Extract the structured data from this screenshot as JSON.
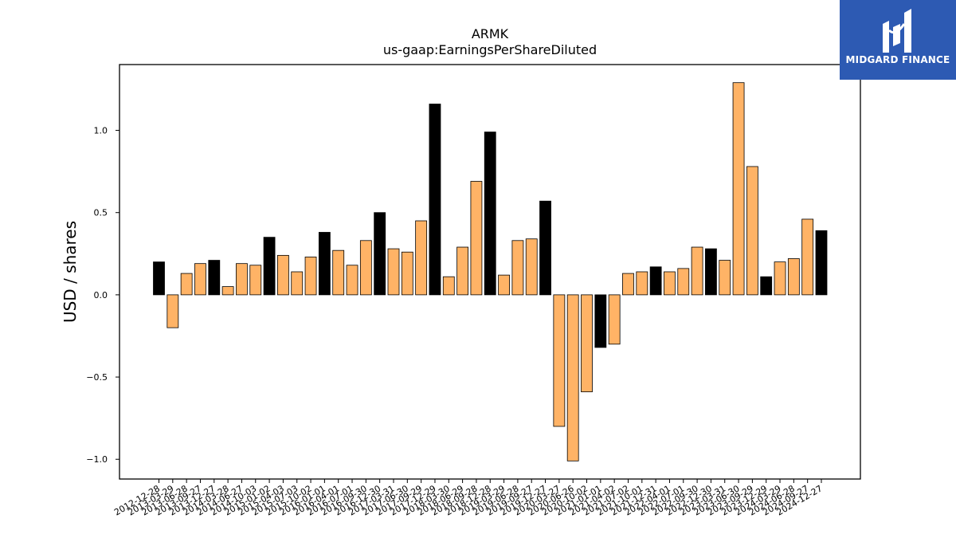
{
  "logo": {
    "text": "MIDGARD FINANCE"
  },
  "chart_data": {
    "type": "bar",
    "title": "ARMK",
    "subtitle": "us-gaap:EarningsPerShareDiluted",
    "xlabel": "",
    "ylabel": "USD / shares",
    "ylim": [
      -1.12,
      1.4
    ],
    "yticks": [
      -1.0,
      -0.5,
      0.0,
      0.5,
      1.0
    ],
    "ytick_labels": [
      "−1.0",
      "−0.5",
      "0.0",
      "0.5",
      "1.0"
    ],
    "grid": false,
    "colors": {
      "annual": "#000000",
      "quarterly": "#ffb366",
      "edge": "#000000"
    },
    "categories": [
      "2012-12-28",
      "2013-03-29",
      "2013-06-28",
      "2013-09-27",
      "2013-12-27",
      "2014-03-28",
      "2014-06-27",
      "2014-10-03",
      "2015-01-02",
      "2015-04-03",
      "2015-07-03",
      "2015-10-02",
      "2016-01-01",
      "2016-04-01",
      "2016-07-01",
      "2016-09-30",
      "2016-12-30",
      "2017-03-31",
      "2017-06-30",
      "2017-09-29",
      "2017-12-29",
      "2018-03-30",
      "2018-06-29",
      "2018-09-28",
      "2018-12-28",
      "2019-03-29",
      "2019-06-28",
      "2019-09-27",
      "2019-12-27",
      "2020-03-27",
      "2020-06-26",
      "2020-10-02",
      "2021-01-01",
      "2021-04-02",
      "2021-07-02",
      "2021-10-01",
      "2021-12-31",
      "2022-04-01",
      "2022-07-01",
      "2022-09-30",
      "2022-12-30",
      "2023-03-31",
      "2023-06-30",
      "2023-09-29",
      "2023-12-29",
      "2024-03-29",
      "2024-06-28",
      "2024-09-27",
      "2024-12-27"
    ],
    "values": [
      0.2,
      -0.2,
      0.13,
      0.19,
      0.21,
      0.05,
      0.19,
      0.18,
      0.35,
      0.24,
      0.14,
      0.23,
      0.38,
      0.27,
      0.18,
      0.33,
      0.5,
      0.28,
      0.26,
      0.45,
      1.16,
      0.11,
      0.29,
      0.69,
      0.99,
      0.12,
      0.33,
      0.34,
      0.57,
      -0.8,
      -1.01,
      -0.59,
      -0.32,
      -0.3,
      0.13,
      0.14,
      0.17,
      0.14,
      0.16,
      0.29,
      0.28,
      0.21,
      1.29,
      0.78,
      0.11,
      0.2,
      0.22,
      0.46,
      0.39
    ],
    "annual": [
      true,
      false,
      false,
      false,
      true,
      false,
      false,
      false,
      true,
      false,
      false,
      false,
      true,
      false,
      false,
      false,
      true,
      false,
      false,
      false,
      true,
      false,
      false,
      false,
      true,
      false,
      false,
      false,
      true,
      false,
      false,
      false,
      true,
      false,
      false,
      false,
      true,
      false,
      false,
      false,
      true,
      false,
      false,
      false,
      true,
      false,
      false,
      false,
      true
    ]
  }
}
